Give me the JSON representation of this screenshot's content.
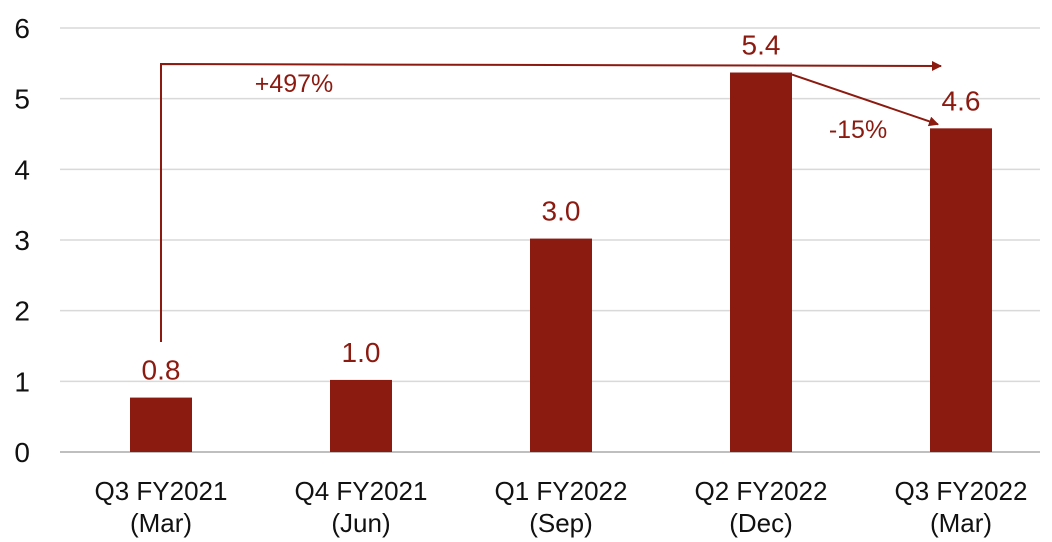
{
  "chart_data": {
    "type": "bar",
    "categories": [
      [
        "Q3 FY2021",
        "(Mar)"
      ],
      [
        "Q4 FY2021",
        "(Jun)"
      ],
      [
        "Q1 FY2022",
        "(Sep)"
      ],
      [
        "Q2 FY2022",
        "(Dec)"
      ],
      [
        "Q3 FY2022",
        "(Mar)"
      ]
    ],
    "values": [
      0.77,
      1.02,
      3.02,
      5.37,
      4.58
    ],
    "data_labels": [
      "0.8",
      "1.0",
      "3.0",
      "5.4",
      "4.6"
    ],
    "title": "",
    "xlabel": "",
    "ylabel": "",
    "ylim": [
      0,
      6
    ],
    "yticks": [
      "0",
      "1",
      "2",
      "3",
      "4",
      "5",
      "6"
    ],
    "grid": true,
    "bar_color": "#8b1a10",
    "label_color": "#8b1a10",
    "grid_color": "#d9d9d9",
    "annotations": [
      {
        "text": "+497%",
        "from_category": 0,
        "to_category": 4
      },
      {
        "text": "-15%",
        "from_category": 3,
        "to_category": 4
      }
    ]
  }
}
